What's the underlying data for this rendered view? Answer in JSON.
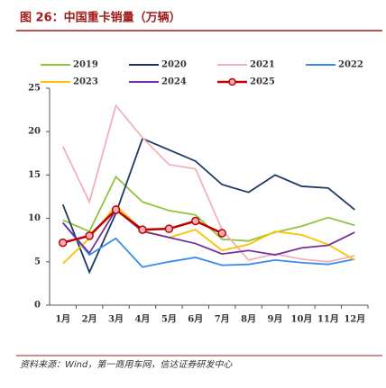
{
  "chart_data": {
    "type": "line",
    "title": "图 26：中国重卡销量（万辆）",
    "source": "资料来源：Wind，第一商用车网，信达证券研发中心",
    "categories": [
      "1月",
      "2月",
      "3月",
      "4月",
      "5月",
      "6月",
      "7月",
      "8月",
      "9月",
      "10月",
      "11月",
      "12月"
    ],
    "ylim": [
      0,
      25
    ],
    "yticks": [
      0,
      5,
      10,
      15,
      20,
      25
    ],
    "series": [
      {
        "name": "2019",
        "color": "#8cc63f",
        "values": [
          9.8,
          8.5,
          14.8,
          11.9,
          10.9,
          10.4,
          7.6,
          7.4,
          8.4,
          9.1,
          10.1,
          9.2
        ]
      },
      {
        "name": "2020",
        "color": "#1f3864",
        "values": [
          11.6,
          3.8,
          10.6,
          19.2,
          17.9,
          16.6,
          13.9,
          13.0,
          15.0,
          13.7,
          13.5,
          11.0
        ]
      },
      {
        "name": "2021",
        "color": "#f4b0b8",
        "values": [
          18.3,
          11.9,
          23.0,
          19.3,
          16.2,
          15.7,
          8.7,
          5.2,
          5.9,
          5.3,
          5.0,
          5.7
        ]
      },
      {
        "name": "2022",
        "color": "#3b8beb",
        "values": [
          9.5,
          5.8,
          7.7,
          4.4,
          5.0,
          5.5,
          4.6,
          4.7,
          5.2,
          4.9,
          4.7,
          5.3
        ]
      },
      {
        "name": "2023",
        "color": "#ffc000",
        "values": [
          4.8,
          7.7,
          11.5,
          8.6,
          7.8,
          8.7,
          6.3,
          7.0,
          8.5,
          8.1,
          7.0,
          5.2
        ]
      },
      {
        "name": "2024",
        "color": "#7030a0",
        "values": [
          9.5,
          6.0,
          11.0,
          8.5,
          7.8,
          7.1,
          5.9,
          6.3,
          5.8,
          6.6,
          6.9,
          8.4
        ]
      },
      {
        "name": "2025",
        "color": "#c00000",
        "marker": "circle",
        "values": [
          7.2,
          8.0,
          11.0,
          8.7,
          8.8,
          9.7,
          8.3,
          null,
          null,
          null,
          null,
          null
        ]
      }
    ]
  }
}
